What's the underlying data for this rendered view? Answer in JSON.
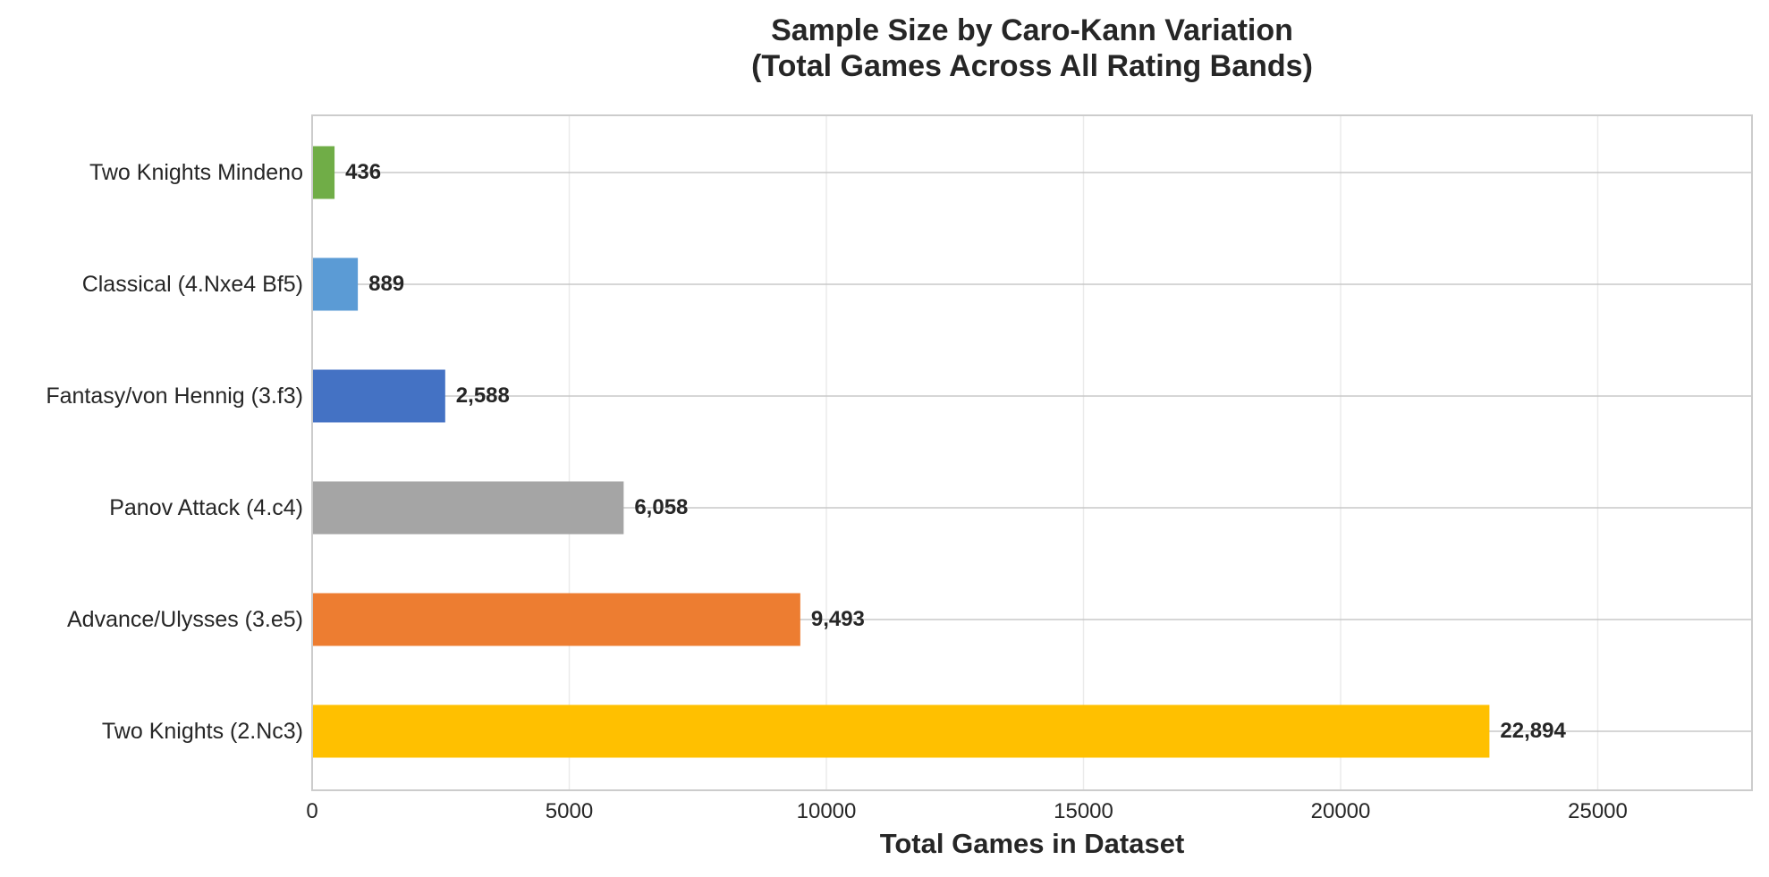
{
  "chart_data": {
    "type": "bar",
    "orientation": "horizontal",
    "title": "Sample Size by Caro-Kann Variation",
    "subtitle": "(Total Games Across All Rating Bands)",
    "xlabel": "Total Games in Dataset",
    "ylabel": "",
    "categories": [
      "Two Knights (2.Nc3)",
      "Advance/Ulysses (3.e5)",
      "Panov Attack (4.c4)",
      "Fantasy/von Hennig (3.f3)",
      "Classical (4.Nxe4 Bf5)",
      "Two Knights Mindeno"
    ],
    "values": [
      22894,
      9493,
      6058,
      2588,
      889,
      436
    ],
    "value_labels": [
      "22,894",
      "9,493",
      "6,058",
      "2,588",
      "889",
      "436"
    ],
    "colors": [
      "#ffc000",
      "#ed7d31",
      "#a5a5a5",
      "#4472c4",
      "#5b9bd5",
      "#70ad47"
    ],
    "xlim": [
      0,
      28000
    ],
    "xticks": [
      0,
      5000,
      10000,
      15000,
      20000,
      25000
    ],
    "xtick_labels": [
      "0",
      "5000",
      "10000",
      "15000",
      "20000",
      "25000"
    ],
    "grid": true,
    "legend": "none"
  }
}
